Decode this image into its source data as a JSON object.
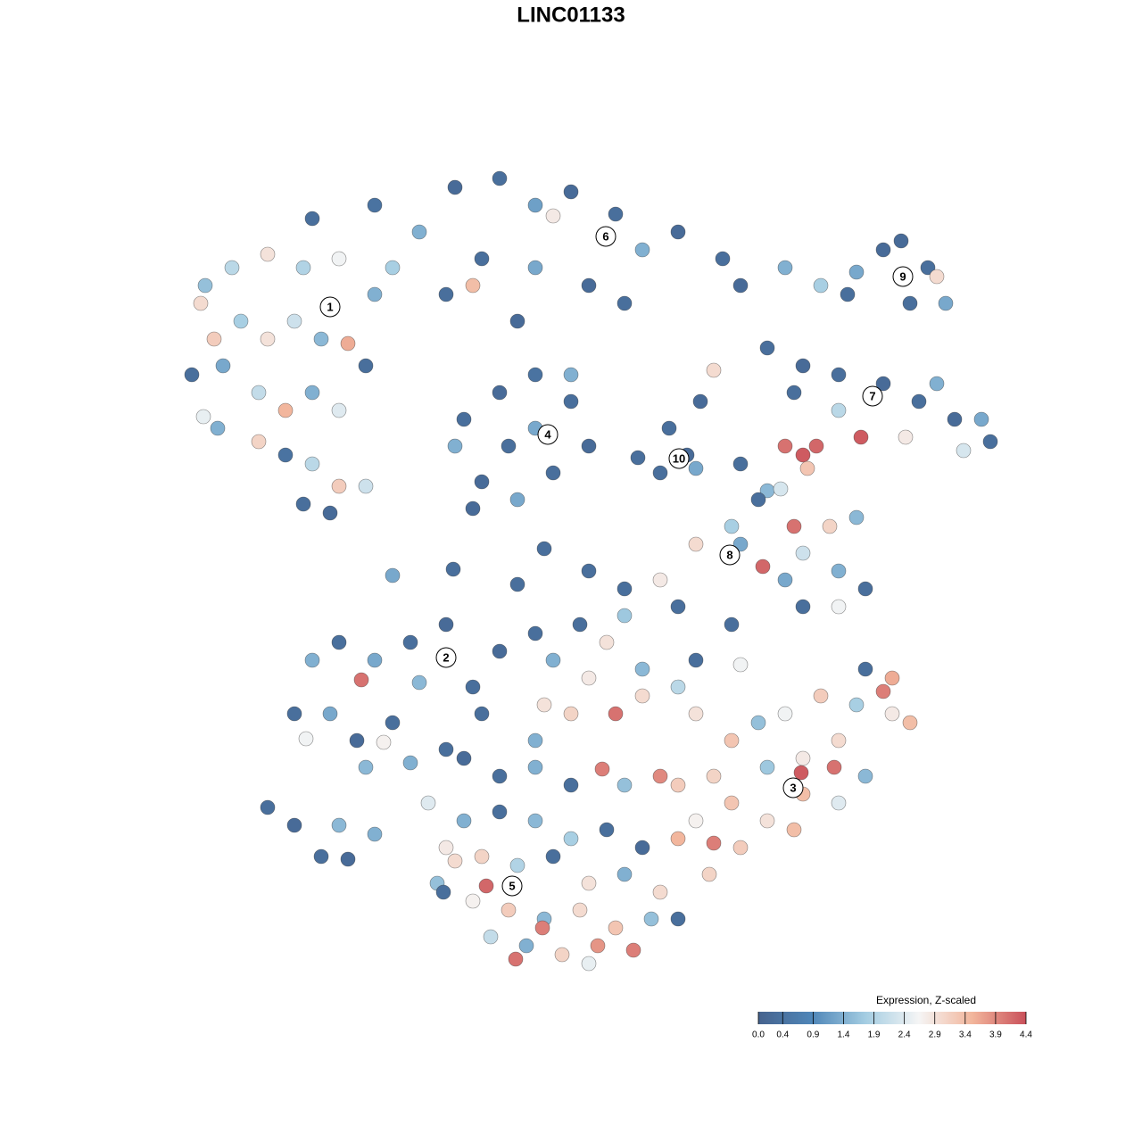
{
  "chart_data": {
    "type": "scatter",
    "title": "LINC01133",
    "x": [
      350,
      420,
      470,
      510,
      560,
      600,
      640,
      690,
      720,
      760,
      810,
      830,
      540,
      600,
      660,
      700,
      580,
      500,
      440,
      620,
      530,
      230,
      260,
      300,
      340,
      380,
      420,
      225,
      240,
      270,
      300,
      330,
      360,
      390,
      410,
      215,
      250,
      290,
      320,
      350,
      380,
      290,
      320,
      350,
      380,
      410,
      340,
      370,
      244,
      228,
      520,
      560,
      600,
      640,
      660,
      620,
      580,
      540,
      600,
      570,
      640,
      510,
      530,
      750,
      770,
      740,
      785,
      780,
      715,
      880,
      920,
      950,
      990,
      1040,
      1050,
      1060,
      1010,
      960,
      1020,
      860,
      900,
      940,
      990,
      1030,
      1070,
      1110,
      1100,
      1050,
      940,
      1015,
      1080,
      890,
      800,
      965,
      830,
      860,
      880,
      900,
      915,
      905,
      875,
      890,
      930,
      960,
      820,
      780,
      830,
      855,
      900,
      940,
      970,
      900,
      940,
      880,
      850,
      440,
      508,
      580,
      610,
      660,
      700,
      740,
      760,
      700,
      650,
      600,
      560,
      620,
      680,
      720,
      780,
      820,
      760,
      660,
      830,
      540,
      520,
      560,
      600,
      640,
      690,
      720,
      610,
      675,
      700,
      640,
      600,
      740,
      350,
      380,
      420,
      460,
      500,
      405,
      470,
      330,
      370,
      400,
      440,
      343,
      430,
      410,
      500,
      530,
      460,
      300,
      330,
      380,
      360,
      420,
      390,
      780,
      820,
      850,
      880,
      920,
      960,
      1000,
      1020,
      940,
      900,
      860,
      800,
      760,
      780,
      820,
      860,
      900,
      940,
      970,
      800,
      830,
      795,
      890,
      760,
      898,
      935,
      990,
      1000,
      970,
      480,
      520,
      560,
      600,
      640,
      680,
      720,
      500,
      540,
      580,
      620,
      660,
      700,
      740,
      490,
      530,
      570,
      610,
      650,
      690,
      730,
      550,
      590,
      630,
      670,
      710,
      578,
      608,
      545,
      510,
      760,
      660,
      497
    ],
    "y": [
      1035,
      1050,
      1020,
      1070,
      1080,
      1050,
      1065,
      1040,
      1000,
      1020,
      990,
      960,
      990,
      980,
      960,
      940,
      920,
      950,
      980,
      1038,
      960,
      960,
      980,
      995,
      980,
      990,
      950,
      940,
      900,
      920,
      900,
      920,
      900,
      895,
      870,
      860,
      870,
      840,
      820,
      840,
      820,
      785,
      770,
      760,
      735,
      735,
      715,
      705,
      800,
      813,
      810,
      840,
      860,
      830,
      780,
      750,
      720,
      740,
      800,
      780,
      860,
      780,
      710,
      800,
      770,
      750,
      830,
      755,
      767,
      980,
      960,
      950,
      1000,
      980,
      970,
      940,
      1010,
      975,
      940,
      890,
      870,
      860,
      850,
      830,
      810,
      785,
      810,
      850,
      820,
      790,
      775,
      840,
      865,
      790,
      760,
      730,
      780,
      770,
      780,
      755,
      732,
      690,
      690,
      700,
      690,
      670,
      670,
      645,
      660,
      640,
      620,
      600,
      600,
      630,
      720,
      635,
      642,
      625,
      665,
      640,
      620,
      630,
      600,
      590,
      580,
      570,
      550,
      540,
      560,
      530,
      540,
      580,
      510,
      520,
      535,
      480,
      430,
      410,
      450,
      480,
      480,
      500,
      490,
      418,
      400,
      400,
      420,
      410,
      540,
      560,
      540,
      560,
      580,
      518,
      515,
      480,
      480,
      450,
      470,
      452,
      448,
      420,
      440,
      510,
      425,
      375,
      355,
      355,
      320,
      345,
      317,
      480,
      450,
      470,
      480,
      500,
      490,
      480,
      470,
      450,
      430,
      420,
      410,
      400,
      360,
      380,
      360,
      390,
      380,
      410,
      335,
      330,
      300,
      350,
      340,
      414,
      420,
      505,
      520,
      530,
      380,
      360,
      370,
      360,
      340,
      350,
      330,
      330,
      320,
      310,
      320,
      290,
      300,
      280,
      290,
      270,
      260,
      250,
      260,
      240,
      250,
      230,
      220,
      210,
      220,
      215,
      205,
      240,
      287,
      315,
      250,
      200,
      280
    ],
    "values": [
      0.3,
      0.4,
      1.4,
      0.2,
      0.3,
      1.2,
      0.2,
      0.3,
      1.4,
      0.2,
      0.3,
      0.2,
      0.3,
      1.3,
      0.2,
      0.3,
      0.2,
      0.3,
      1.8,
      2.8,
      3.4,
      1.6,
      2.0,
      2.9,
      1.9,
      2.6,
      1.4,
      3.0,
      3.2,
      1.8,
      2.9,
      2.2,
      1.5,
      3.6,
      0.3,
      0.3,
      1.3,
      2.1,
      3.5,
      1.4,
      2.4,
      3.1,
      0.4,
      2.0,
      3.2,
      2.2,
      0.3,
      0.2,
      1.4,
      2.5,
      0.3,
      0.2,
      0.4,
      0.3,
      0.2,
      0.3,
      1.3,
      0.2,
      1.3,
      0.3,
      1.4,
      1.4,
      0.2,
      0.3,
      0.2,
      0.3,
      0.2,
      1.3,
      0.3,
      1.4,
      1.8,
      0.3,
      0.2,
      0.3,
      3.0,
      1.3,
      0.2,
      1.3,
      0.3,
      0.3,
      0.2,
      0.3,
      0.2,
      0.3,
      0.2,
      0.3,
      1.3,
      1.4,
      2.0,
      2.8,
      2.3,
      0.3,
      3.0,
      4.3,
      0.3,
      1.5,
      4.1,
      4.3,
      4.2,
      3.3,
      2.3,
      4.1,
      3.1,
      1.5,
      1.8,
      3.0,
      1.3,
      4.2,
      2.2,
      1.4,
      0.3,
      0.3,
      2.6,
      1.3,
      0.3,
      1.3,
      0.3,
      0.3,
      0.3,
      0.3,
      0.3,
      2.8,
      0.3,
      1.7,
      0.3,
      0.3,
      0.2,
      1.4,
      2.9,
      1.5,
      0.3,
      0.3,
      2.0,
      2.8,
      2.6,
      0.3,
      0.2,
      0.3,
      1.4,
      3.1,
      4.1,
      3.0,
      2.9,
      4.0,
      1.6,
      0.3,
      1.4,
      3.9,
      1.4,
      0.3,
      1.3,
      0.3,
      0.2,
      4.1,
      1.5,
      0.3,
      1.3,
      0.2,
      0.3,
      2.6,
      2.7,
      1.5,
      0.3,
      0.3,
      1.4,
      0.3,
      0.2,
      1.5,
      0.3,
      1.4,
      0.2,
      2.9,
      3.3,
      1.6,
      2.6,
      3.2,
      1.8,
      2.8,
      3.4,
      3.0,
      2.8,
      1.7,
      3.1,
      3.2,
      2.7,
      3.3,
      2.9,
      3.4,
      2.4,
      1.5,
      4.0,
      3.2,
      3.1,
      3.4,
      3.5,
      4.3,
      4.1,
      4.0,
      3.6,
      0.3,
      2.4,
      1.4,
      0.3,
      1.5,
      1.8,
      0.3,
      0.2,
      2.8,
      3.1,
      1.9,
      0.3,
      2.9,
      1.4,
      3.0,
      1.6,
      2.7,
      3.2,
      1.5,
      3.0,
      3.3,
      1.6,
      2.1,
      1.4,
      3.1,
      3.8,
      4.0,
      4.1,
      4.0,
      4.2,
      3.0,
      0.3,
      2.5,
      0.3
    ],
    "xlim": [
      0,
      1280
    ],
    "ylim": [
      0,
      1280
    ],
    "clusters": [
      {
        "label": "1",
        "x": 370,
        "y": 936
      },
      {
        "label": "2",
        "x": 500,
        "y": 543
      },
      {
        "label": "3",
        "x": 889,
        "y": 397
      },
      {
        "label": "4",
        "x": 614,
        "y": 793
      },
      {
        "label": "5",
        "x": 574,
        "y": 287
      },
      {
        "label": "6",
        "x": 679,
        "y": 1015
      },
      {
        "label": "7",
        "x": 978,
        "y": 836
      },
      {
        "label": "8",
        "x": 818,
        "y": 658
      },
      {
        "label": "9",
        "x": 1012,
        "y": 970
      },
      {
        "label": "10",
        "x": 761,
        "y": 766
      }
    ],
    "colorbar": {
      "title": "Expression, Z-scaled",
      "lim": [
        0,
        4.4
      ],
      "ticks": [
        {
          "value": 0,
          "label": "0.0"
        },
        0.4,
        0.9,
        1.4,
        1.9,
        2.4,
        2.9,
        3.4,
        3.9,
        4.4
      ],
      "colors": [
        "#46638e",
        "#4f86b8",
        "#a4cde2",
        "#f5f5f5",
        "#f2b59b",
        "#c9505a"
      ]
    }
  }
}
